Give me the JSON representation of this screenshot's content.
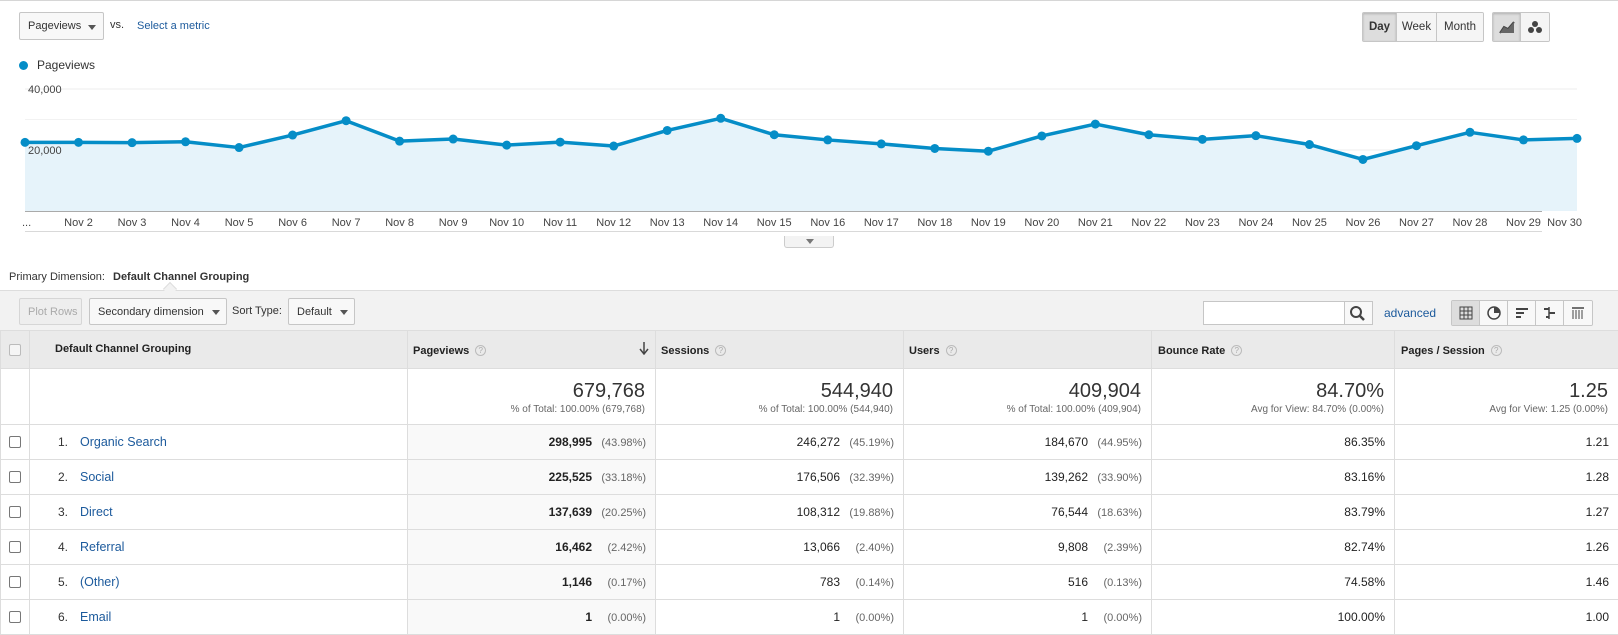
{
  "controls": {
    "metric_select": "Pageviews",
    "vs": "vs.",
    "select_metric": "Select a metric",
    "period_buttons": [
      "Day",
      "Week",
      "Month"
    ],
    "active_period": "Day"
  },
  "legend": {
    "label": "Pageviews",
    "color": "#058dc7"
  },
  "chart_data": {
    "type": "area",
    "series": [
      {
        "name": "Pageviews",
        "values": [
          22500,
          22500,
          22400,
          22700,
          20800,
          24900,
          29600,
          22900,
          23600,
          21600,
          22600,
          21300,
          26400,
          30400,
          25000,
          23300,
          22000,
          20500,
          19600,
          24600,
          28500,
          25000,
          23500,
          24700,
          21800,
          16900,
          21400,
          25800,
          23300,
          23800
        ]
      }
    ],
    "x_labels": [
      "...",
      "Nov 2",
      "Nov 3",
      "Nov 4",
      "Nov 5",
      "Nov 6",
      "Nov 7",
      "Nov 8",
      "Nov 9",
      "Nov 10",
      "Nov 11",
      "Nov 12",
      "Nov 13",
      "Nov 14",
      "Nov 15",
      "Nov 16",
      "Nov 17",
      "Nov 18",
      "Nov 19",
      "Nov 20",
      "Nov 21",
      "Nov 22",
      "Nov 23",
      "Nov 24",
      "Nov 25",
      "Nov 26",
      "Nov 27",
      "Nov 28",
      "Nov 29",
      "Nov 30"
    ],
    "y_ticks": [
      {
        "value": 40000,
        "label": "40,000"
      },
      {
        "value": 20000,
        "label": "20,000"
      }
    ],
    "ylim": [
      0,
      40000
    ],
    "color": "#058dc7",
    "fill": "#e6f3fa"
  },
  "primary_dimension": {
    "label": "Primary Dimension:",
    "value": "Default Channel Grouping"
  },
  "toolbar": {
    "plot_rows": "Plot Rows",
    "secondary_dimension": "Secondary dimension",
    "sort_type_label": "Sort Type:",
    "sort_type_value": "Default",
    "search_placeholder": "",
    "advanced": "advanced"
  },
  "table": {
    "headers": {
      "dimension": "Default Channel Grouping",
      "pageviews": "Pageviews",
      "sessions": "Sessions",
      "users": "Users",
      "bounce_rate": "Bounce Rate",
      "pages_session": "Pages / Session"
    },
    "totals": {
      "pageviews": "679,768",
      "pageviews_note": "% of Total: 100.00% (679,768)",
      "sessions": "544,940",
      "sessions_note": "% of Total: 100.00% (544,940)",
      "users": "409,904",
      "users_note": "% of Total: 100.00% (409,904)",
      "bounce_rate": "84.70%",
      "bounce_rate_note": "Avg for View: 84.70% (0.00%)",
      "pages_session": "1.25",
      "pages_session_note": "Avg for View: 1.25 (0.00%)"
    },
    "rows": [
      {
        "rank": "1.",
        "channel": "Organic Search",
        "pageviews": "298,995",
        "pageviews_pct": "(43.98%)",
        "sessions": "246,272",
        "sessions_pct": "(45.19%)",
        "users": "184,670",
        "users_pct": "(44.95%)",
        "bounce_rate": "86.35%",
        "pages_session": "1.21"
      },
      {
        "rank": "2.",
        "channel": "Social",
        "pageviews": "225,525",
        "pageviews_pct": "(33.18%)",
        "sessions": "176,506",
        "sessions_pct": "(32.39%)",
        "users": "139,262",
        "users_pct": "(33.90%)",
        "bounce_rate": "83.16%",
        "pages_session": "1.28"
      },
      {
        "rank": "3.",
        "channel": "Direct",
        "pageviews": "137,639",
        "pageviews_pct": "(20.25%)",
        "sessions": "108,312",
        "sessions_pct": "(19.88%)",
        "users": "76,544",
        "users_pct": "(18.63%)",
        "bounce_rate": "83.79%",
        "pages_session": "1.27"
      },
      {
        "rank": "4.",
        "channel": "Referral",
        "pageviews": "16,462",
        "pageviews_pct": "(2.42%)",
        "sessions": "13,066",
        "sessions_pct": "(2.40%)",
        "users": "9,808",
        "users_pct": "(2.39%)",
        "bounce_rate": "82.74%",
        "pages_session": "1.26"
      },
      {
        "rank": "5.",
        "channel": "(Other)",
        "pageviews": "1,146",
        "pageviews_pct": "(0.17%)",
        "sessions": "783",
        "sessions_pct": "(0.14%)",
        "users": "516",
        "users_pct": "(0.13%)",
        "bounce_rate": "74.58%",
        "pages_session": "1.46"
      },
      {
        "rank": "6.",
        "channel": "Email",
        "pageviews": "1",
        "pageviews_pct": "(0.00%)",
        "sessions": "1",
        "sessions_pct": "(0.00%)",
        "users": "1",
        "users_pct": "(0.00%)",
        "bounce_rate": "100.00%",
        "pages_session": "1.00"
      }
    ]
  },
  "icons": {
    "metric_caret": "chevron-down-icon",
    "line_chart": "line-chart-icon",
    "motion_chart": "bubble-chart-icon",
    "search": "search-icon",
    "view_table": "grid-view-icon",
    "view_pie": "pie-view-icon",
    "view_performance": "bar-view-icon",
    "view_comparison": "comparison-view-icon",
    "view_pivot": "pivot-view-icon",
    "sort": "sort-descending-icon",
    "help": "help-icon"
  }
}
